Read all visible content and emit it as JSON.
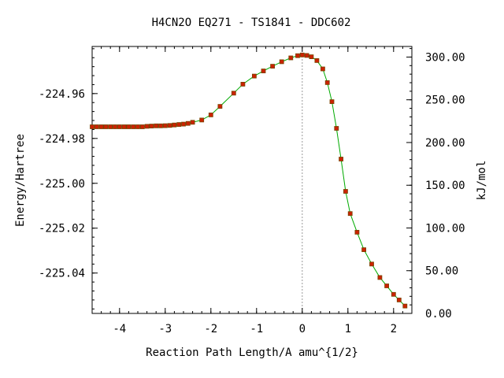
{
  "chart_data": {
    "type": "scatter",
    "title": "H4CN2O   EQ271 - TS1841 - DDC602",
    "xlabel": "Reaction Path Length/A amu^{1/2}",
    "ylabel": "Energy/Hartree",
    "y2label": "kJ/mol",
    "xlim": [
      -4.6,
      2.4
    ],
    "ylim": [
      -225.058,
      -224.939
    ],
    "y2lim": [
      0.0,
      312.4
    ],
    "x_ticks": [
      -4,
      -3,
      -2,
      -1,
      0,
      1,
      2
    ],
    "x_tick_labels": [
      "-4",
      "-3",
      "-2",
      "-1",
      "0",
      "1",
      "2"
    ],
    "y_ticks": [
      -224.96,
      -224.98,
      -225.0,
      -225.02,
      -225.04
    ],
    "y_tick_labels": [
      "-224.96",
      "-224.98",
      "-225.00",
      "-225.02",
      "-225.04"
    ],
    "y2_ticks": [
      300,
      250,
      200,
      150,
      100,
      50,
      0
    ],
    "y2_tick_labels": [
      "300.00",
      "250.00",
      "200.00",
      "150.00",
      "100.00",
      "50.00",
      "0.00"
    ],
    "ts_marker_x": 0,
    "line_color": "#00aa00",
    "marker_color": "#cc2200",
    "marker_edge_color": "#774400",
    "series": [
      {
        "x": [
          -4.6,
          -4.5,
          -4.4,
          -4.3,
          -4.2,
          -4.1,
          -4.0,
          -3.9,
          -3.8,
          -3.7,
          -3.6,
          -3.5,
          -3.4,
          -3.3,
          -3.2,
          -3.1,
          -3.0,
          -2.9,
          -2.8,
          -2.7,
          -2.6,
          -2.5,
          -2.4,
          -2.2,
          -2.0,
          -1.8,
          -1.5,
          -1.3,
          -1.05,
          -0.85,
          -0.65,
          -0.45,
          -0.25,
          -0.1,
          0.0,
          0.1,
          0.2,
          0.32,
          0.45,
          0.55,
          0.65,
          0.75,
          0.85,
          0.95,
          1.05,
          1.2,
          1.35,
          1.52,
          1.7,
          1.85,
          2.0,
          2.12,
          2.25
        ],
        "y": [
          -224.9748,
          -224.9748,
          -224.9748,
          -224.9748,
          -224.9748,
          -224.9748,
          -224.9748,
          -224.9748,
          -224.9748,
          -224.9748,
          -224.9748,
          -224.9748,
          -224.9746,
          -224.9745,
          -224.9744,
          -224.9744,
          -224.9743,
          -224.9742,
          -224.974,
          -224.9738,
          -224.9736,
          -224.9733,
          -224.9728,
          -224.9718,
          -224.9695,
          -224.9657,
          -224.9598,
          -224.9558,
          -224.9522,
          -224.9499,
          -224.9478,
          -224.9458,
          -224.9441,
          -224.9431,
          -224.9428,
          -224.943,
          -224.9436,
          -224.9453,
          -224.949,
          -224.9551,
          -224.9636,
          -224.9755,
          -224.9892,
          -225.0036,
          -225.0135,
          -225.0218,
          -225.0296,
          -225.036,
          -225.042,
          -225.0457,
          -225.0495,
          -225.052,
          -225.0547
        ]
      }
    ]
  }
}
